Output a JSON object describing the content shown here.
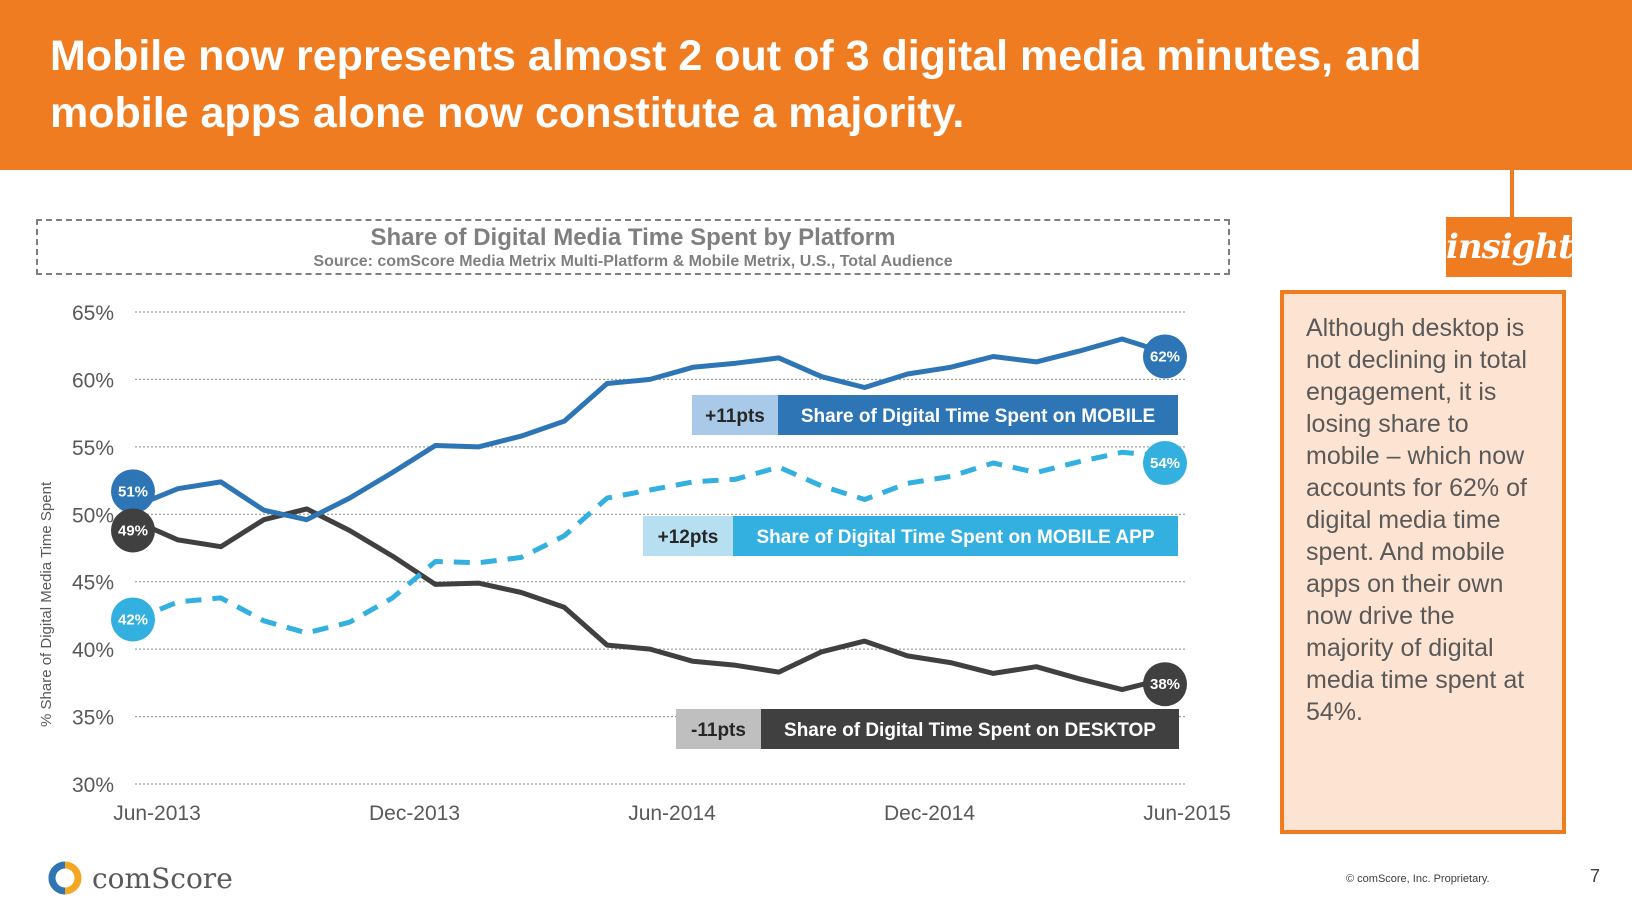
{
  "header": {
    "title": "Mobile now represents almost 2 out of 3 digital media minutes, and mobile apps alone now constitute a majority."
  },
  "insight": {
    "tag": "insight",
    "text": "Although desktop is not declining in total engagement, it is losing share to mobile – which now accounts for 62% of digital media time spent. And mobile apps on their own now drive the majority of digital media time spent at 54%."
  },
  "colors": {
    "brand_orange": "#f07c22",
    "mobile": "#2e75b6",
    "mobile_app": "#33b0e0",
    "desktop": "#404040",
    "insight_bg": "#fde3d2"
  },
  "footer": {
    "logo_text": "comScore",
    "copyright": "© comScore, Inc. Proprietary.",
    "page_number": "7"
  },
  "chart_data": {
    "type": "line",
    "title": "Share of Digital Media Time Spent by Platform",
    "subtitle": "Source: comScore Media Metrix Multi-Platform & Mobile Metrix, U.S., Total Audience",
    "ylabel": "% Share of Digital Media Time Spent",
    "xlabel": "",
    "ylim": [
      30,
      65
    ],
    "y_ticks": [
      30,
      35,
      40,
      45,
      50,
      55,
      60,
      65
    ],
    "y_tick_labels": [
      "30%",
      "35%",
      "40%",
      "45%",
      "50%",
      "55%",
      "60%",
      "65%"
    ],
    "x_tick_labels": [
      "Jun-2013",
      "Dec-2013",
      "Jun-2014",
      "Dec-2014",
      "Jun-2015"
    ],
    "x_tick_indices": [
      0,
      6,
      12,
      18,
      24
    ],
    "grid": true,
    "x": [
      "Jun-2013",
      "Jul-2013",
      "Aug-2013",
      "Sep-2013",
      "Oct-2013",
      "Nov-2013",
      "Dec-2013",
      "Jan-2014",
      "Feb-2014",
      "Mar-2014",
      "Apr-2014",
      "May-2014",
      "Jun-2014",
      "Jul-2014",
      "Aug-2014",
      "Sep-2014",
      "Oct-2014",
      "Nov-2014",
      "Dec-2014",
      "Jan-2015",
      "Feb-2015",
      "Mar-2015",
      "Apr-2015",
      "May-2015",
      "Jun-2015"
    ],
    "series": [
      {
        "name": "Share of Digital Time Spent on MOBILE",
        "key": "mobile",
        "dashed": false,
        "change_label": "+11pts",
        "start_label": "51%",
        "end_label": "62%",
        "values": [
          50.6,
          51.9,
          52.4,
          50.3,
          49.6,
          51.2,
          53.1,
          55.1,
          55.0,
          55.8,
          56.9,
          59.7,
          60.0,
          60.9,
          61.2,
          61.6,
          60.2,
          59.4,
          60.4,
          60.9,
          61.7,
          61.3,
          62.1,
          63.0,
          62.0
        ]
      },
      {
        "name": "Share of Digital Time Spent on MOBILE APP",
        "key": "mobile_app",
        "dashed": true,
        "change_label": "+12pts",
        "start_label": "42%",
        "end_label": "54%",
        "values": [
          42.2,
          43.5,
          43.8,
          42.1,
          41.2,
          42.0,
          43.8,
          46.5,
          46.4,
          46.8,
          48.4,
          51.2,
          51.8,
          52.4,
          52.6,
          53.5,
          52.1,
          51.1,
          52.3,
          52.8,
          53.8,
          53.1,
          53.9,
          54.6,
          54.3
        ]
      },
      {
        "name": "Share of Digital Time Spent on DESKTOP",
        "key": "desktop",
        "dashed": false,
        "change_label": "-11pts",
        "start_label": "49%",
        "end_label": "38%",
        "values": [
          49.5,
          48.1,
          47.6,
          49.6,
          50.4,
          48.8,
          46.9,
          44.8,
          44.9,
          44.2,
          43.1,
          40.3,
          40.0,
          39.1,
          38.8,
          38.3,
          39.8,
          40.6,
          39.5,
          39.0,
          38.2,
          38.7,
          37.8,
          37.0,
          37.8
        ]
      }
    ]
  }
}
